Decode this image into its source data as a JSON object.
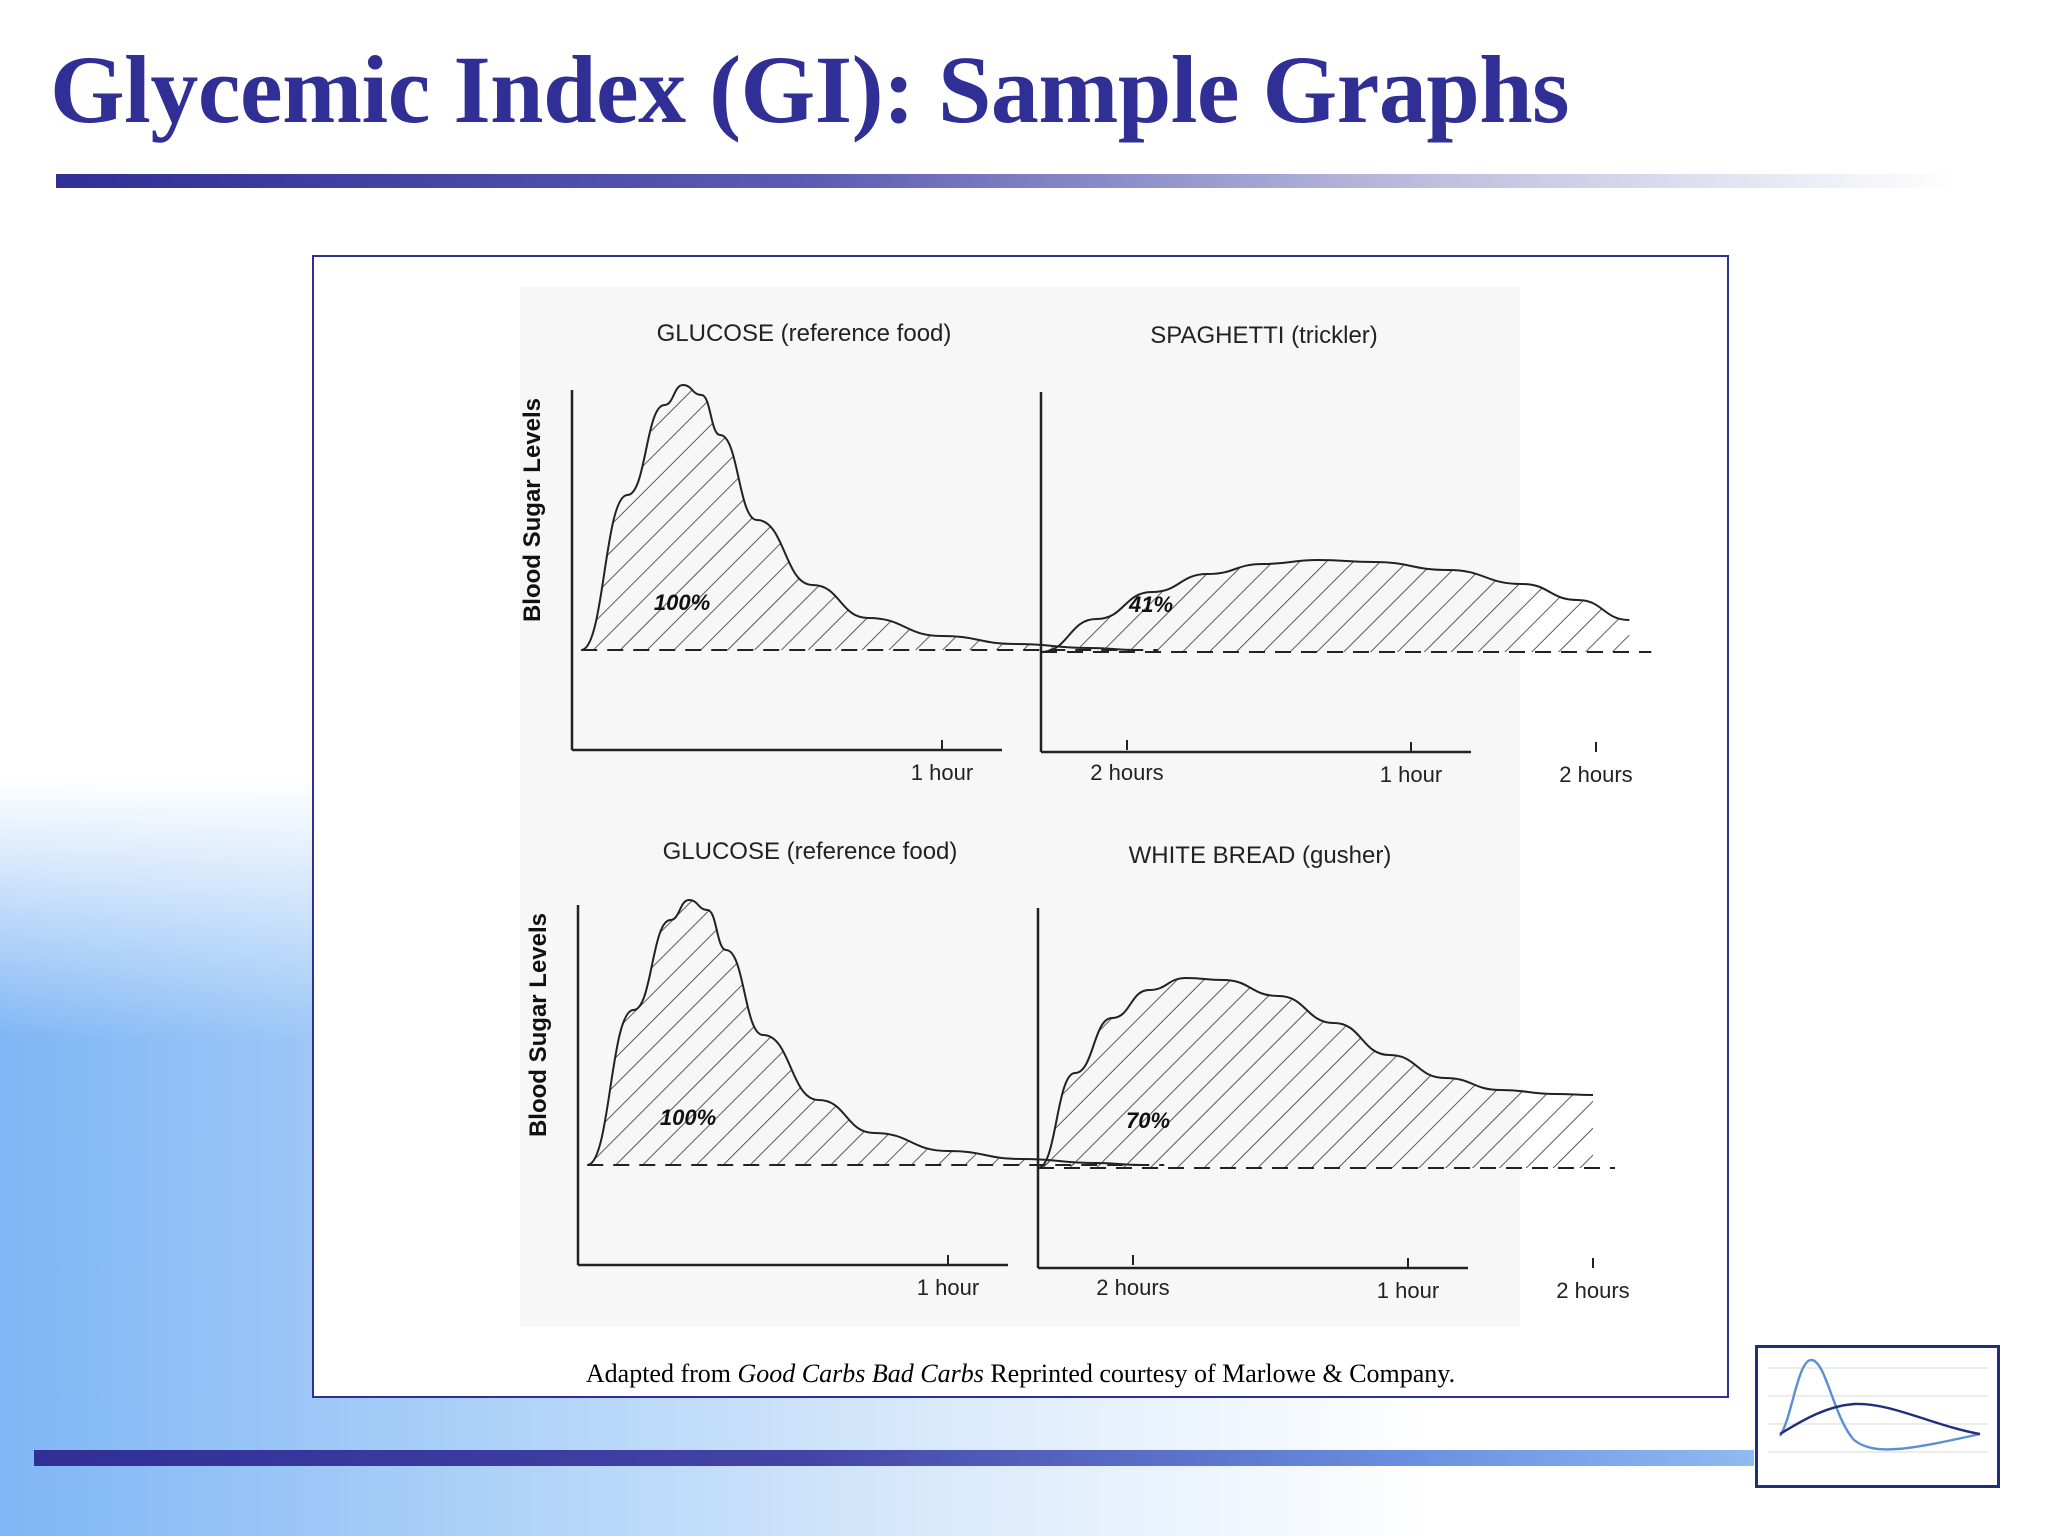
{
  "slide": {
    "title": "Glycemic Index (GI): Sample Graphs",
    "caption_prefix": "Adapted from ",
    "caption_book": "Good Carbs Bad Carbs",
    "caption_suffix": "  Reprinted courtesy of Marlowe & Company."
  },
  "colors": {
    "title": "#2f2f96",
    "frame": "#2f2f96",
    "thumb_line_1": "#5b8fd4",
    "thumb_line_2": "#1f2f7a"
  },
  "thumbnail_icon": "glycemic-curve-thumbnail-icon",
  "chart_data": [
    {
      "type": "area",
      "title": "GLUCOSE (reference food)",
      "ylabel": "Blood Sugar Levels",
      "xlabel": "",
      "x_ticks": [
        {
          "value": 1,
          "label": "1  hour"
        },
        {
          "value": 2,
          "label": "2  hours"
        }
      ],
      "xlim": [
        -1.0,
        2.3
      ],
      "ylim": [
        -1.0,
        2.7
      ],
      "baseline": 0,
      "area_label": "100%",
      "series": [
        {
          "x": [
            -0.95,
            -0.7,
            -0.5,
            -0.4,
            -0.3,
            -0.2,
            0.0,
            0.3,
            0.6,
            1.0,
            1.4,
            1.8,
            2.05
          ],
          "values": [
            0.0,
            1.55,
            2.45,
            2.65,
            2.55,
            2.15,
            1.3,
            0.65,
            0.32,
            0.14,
            0.06,
            0.02,
            0.0
          ]
        }
      ]
    },
    {
      "type": "area",
      "title": "SPAGHETTI (trickler)",
      "ylabel": "",
      "xlabel": "",
      "x_ticks": [
        {
          "value": 1,
          "label": "1  hour"
        },
        {
          "value": 2,
          "label": "2  hours"
        }
      ],
      "xlim": [
        -1.0,
        2.3
      ],
      "ylim": [
        -1.0,
        2.7
      ],
      "baseline": 0,
      "area_label": "41%",
      "series": [
        {
          "x": [
            -1.0,
            -0.7,
            -0.4,
            -0.1,
            0.2,
            0.5,
            0.8,
            1.2,
            1.6,
            1.9,
            2.18
          ],
          "values": [
            0.0,
            0.33,
            0.6,
            0.78,
            0.88,
            0.92,
            0.9,
            0.82,
            0.68,
            0.52,
            0.32
          ]
        }
      ]
    },
    {
      "type": "area",
      "title": "GLUCOSE (reference food)",
      "ylabel": "Blood Sugar Levels",
      "xlabel": "",
      "x_ticks": [
        {
          "value": 1,
          "label": "1  hour"
        },
        {
          "value": 2,
          "label": "2  hours"
        }
      ],
      "xlim": [
        -1.0,
        2.3
      ],
      "ylim": [
        -1.0,
        2.7
      ],
      "baseline": 0,
      "area_label": "100%",
      "series": [
        {
          "x": [
            -0.95,
            -0.7,
            -0.5,
            -0.4,
            -0.3,
            -0.2,
            0.0,
            0.3,
            0.6,
            1.0,
            1.4,
            1.8,
            2.05
          ],
          "values": [
            0.0,
            1.55,
            2.45,
            2.65,
            2.55,
            2.15,
            1.3,
            0.65,
            0.32,
            0.14,
            0.06,
            0.02,
            0.0
          ]
        }
      ]
    },
    {
      "type": "area",
      "title": "WHITE BREAD (gusher)",
      "ylabel": "",
      "xlabel": "",
      "x_ticks": [
        {
          "value": 1,
          "label": "1  hour"
        },
        {
          "value": 2,
          "label": "2  hours"
        }
      ],
      "xlim": [
        -1.0,
        2.3
      ],
      "ylim": [
        -1.0,
        2.7
      ],
      "baseline": 0,
      "area_label": "70%",
      "series": [
        {
          "x": [
            -1.0,
            -0.8,
            -0.6,
            -0.4,
            -0.2,
            0.0,
            0.3,
            0.6,
            0.9,
            1.2,
            1.5,
            1.8,
            2.0
          ],
          "values": [
            0.0,
            0.95,
            1.5,
            1.78,
            1.9,
            1.88,
            1.72,
            1.45,
            1.13,
            0.9,
            0.78,
            0.74,
            0.73
          ]
        }
      ]
    }
  ]
}
